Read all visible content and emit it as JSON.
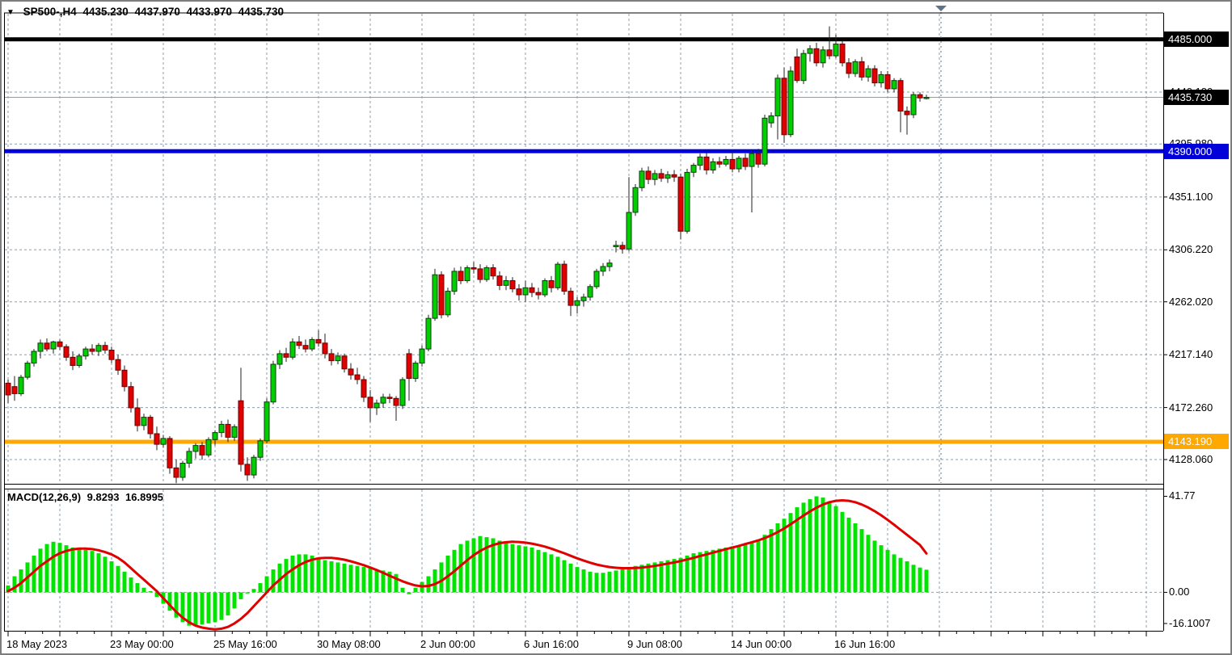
{
  "window": {
    "symbol_label": "SP500-,H4",
    "ohlc_display": {
      "open": "4435.230",
      "high": "4437.970",
      "low": "4433.970",
      "close": "4435.730"
    }
  },
  "indicator_label": {
    "name": "MACD(12,26,9)",
    "macd": "9.8293",
    "signal": "16.8995"
  },
  "colors": {
    "bull": "#00CE00",
    "bull_border": "#0B3D0B",
    "bear": "#E00000",
    "bear_border": "#6B0000",
    "wick": "#222222",
    "grid": "#8E9EAE",
    "hist": "#00E400",
    "signal": "#E00000",
    "price_line": "#9B9B9B",
    "border": "#000000",
    "shift_marker": "#5F7386",
    "hline_black": "#000000",
    "hline_blue": "#0000D9",
    "hline_orange": "#FFA800"
  },
  "hlines": [
    {
      "name": "resistance-black",
      "price": 4485.0,
      "label": "4485.000",
      "color_key": "hline_black",
      "badge_bg": "#000000",
      "badge_fg": "#FFFFFF"
    },
    {
      "name": "support-blue",
      "price": 4390.0,
      "label": "4390.000",
      "color_key": "hline_blue",
      "badge_bg": "#0000D9",
      "badge_fg": "#FFFFFF"
    },
    {
      "name": "support-orange",
      "price": 4143.19,
      "label": "4143.190",
      "color_key": "hline_orange",
      "badge_bg": "#FFA800",
      "badge_fg": "#FFFFFF"
    }
  ],
  "current_price": {
    "value": 4435.73,
    "label": "4435.730",
    "badge_bg": "#000000",
    "badge_fg": "#FFFFFF"
  },
  "price_axis_ticks": [
    {
      "label": "4440.180",
      "price": 4440.18
    },
    {
      "label": "4395.980",
      "price": 4395.98
    },
    {
      "label": "4351.100",
      "price": 4351.1
    },
    {
      "label": "4306.220",
      "price": 4306.22
    },
    {
      "label": "4262.020",
      "price": 4262.02
    },
    {
      "label": "4217.140",
      "price": 4217.14
    },
    {
      "label": "4172.260",
      "price": 4172.26
    },
    {
      "label": "4128.060",
      "price": 4128.06
    }
  ],
  "macd_axis_ticks": [
    {
      "label": "41.77",
      "value": 41.77
    },
    {
      "label": "0.00",
      "value": 0
    },
    {
      "label": "-16.1007",
      "value": -16.1007
    }
  ],
  "time_axis_labels": [
    {
      "label": "18 May 2023",
      "index": 0
    },
    {
      "label": "23 May 00:00",
      "index": 16
    },
    {
      "label": "25 May 16:00",
      "index": 32
    },
    {
      "label": "30 May 08:00",
      "index": 48
    },
    {
      "label": "2 Jun 00:00",
      "index": 64
    },
    {
      "label": "6 Jun 16:00",
      "index": 80
    },
    {
      "label": "9 Jun 08:00",
      "index": 96
    },
    {
      "label": "14 Jun 00:00",
      "index": 112
    },
    {
      "label": "16 Jun 16:00",
      "index": 128
    }
  ],
  "chart_data": [
    {
      "type": "candlestick",
      "title": "SP500- H4",
      "ylim": [
        4107.5,
        4507.4
      ],
      "xlabels": [
        "18 May 2023",
        "23 May 00:00",
        "25 May 16:00",
        "30 May 08:00",
        "2 Jun 00:00",
        "6 Jun 16:00",
        "9 Jun 08:00",
        "14 Jun 00:00",
        "16 Jun 16:00"
      ],
      "open": [
        4193,
        4190,
        4184,
        4198,
        4210,
        4220,
        4227,
        4222,
        4228,
        4224,
        4215,
        4208,
        4216,
        4222,
        4220,
        4225,
        4221,
        4213,
        4204,
        4190,
        4172,
        4157,
        4164,
        4150,
        4141,
        4146,
        4121,
        4113,
        4125,
        4135,
        4140,
        4132,
        4145,
        4151,
        4158,
        4147,
        4178,
        4124,
        4115,
        4130,
        4144,
        4177,
        4209,
        4218,
        4215,
        4228,
        4225,
        4222,
        4230,
        4227,
        4218,
        4212,
        4216,
        4205,
        4200,
        4196,
        4181,
        4172,
        4176,
        4181,
        4180,
        4174,
        4218,
        4197,
        4210,
        4222,
        4248,
        4285,
        4251,
        4271,
        4288,
        4280,
        4291,
        4290,
        4281,
        4291,
        4284,
        4276,
        4280,
        4273,
        4268,
        4274,
        4270,
        4268,
        4280,
        4274,
        4294,
        4271,
        4259,
        4263,
        4266,
        4275,
        4288,
        4292,
        4309,
        4310,
        4307,
        4338,
        4359,
        4373,
        4366,
        4371,
        4367,
        4370,
        4368,
        4322,
        4372,
        4378,
        4385,
        4374,
        4381,
        4379,
        4383,
        4375,
        4384,
        4377,
        4388,
        4379,
        4414,
        4420,
        4452,
        4404,
        4470,
        4450,
        4473,
        4477,
        4465,
        4476,
        4471,
        4481,
        4465,
        4456,
        4466,
        4453,
        4460,
        4448,
        4455,
        4443,
        4450,
        4424,
        4421,
        4438,
        4435.23
      ],
      "high": [
        4196,
        4199,
        4200,
        4212,
        4222,
        4230,
        4231,
        4229,
        4230,
        4226,
        4220,
        4218,
        4224,
        4226,
        4227,
        4228,
        4224,
        4217,
        4208,
        4194,
        4180,
        4167,
        4166,
        4156,
        4149,
        4148,
        4128,
        4127,
        4138,
        4142,
        4143,
        4147,
        4153,
        4161,
        4162,
        4158,
        4206,
        4130,
        4132,
        4146,
        4180,
        4212,
        4221,
        4223,
        4231,
        4233,
        4230,
        4232,
        4238,
        4235,
        4222,
        4219,
        4218,
        4210,
        4206,
        4199,
        4187,
        4179,
        4184,
        4184,
        4182,
        4198,
        4222,
        4212,
        4225,
        4251,
        4290,
        4288,
        4274,
        4291,
        4292,
        4293,
        4296,
        4294,
        4293,
        4294,
        4288,
        4284,
        4283,
        4277,
        4280,
        4278,
        4274,
        4282,
        4284,
        4296,
        4297,
        4274,
        4266,
        4269,
        4277,
        4290,
        4295,
        4298,
        4314,
        4313,
        4368,
        4362,
        4376,
        4377,
        4374,
        4375,
        4373,
        4374,
        4371,
        4375,
        4380,
        4388,
        4389,
        4384,
        4385,
        4386,
        4390,
        4386,
        4388,
        4391,
        4392,
        4421,
        4423,
        4455,
        4461,
        4462,
        4477,
        4476,
        4480,
        4482,
        4479,
        4496,
        4489,
        4484,
        4469,
        4468,
        4470,
        4463,
        4463,
        4458,
        4458,
        4452,
        4452,
        4428,
        4440,
        4440,
        4437.97
      ],
      "low": [
        4176,
        4178,
        4182,
        4196,
        4207,
        4214,
        4220,
        4218,
        4221,
        4212,
        4204,
        4206,
        4213,
        4217,
        4216,
        4218,
        4210,
        4200,
        4186,
        4168,
        4152,
        4153,
        4146,
        4136,
        4138,
        4116,
        4108,
        4110,
        4121,
        4129,
        4128,
        4130,
        4140,
        4147,
        4143,
        4144,
        4118,
        4110,
        4112,
        4127,
        4142,
        4175,
        4205,
        4211,
        4213,
        4222,
        4219,
        4220,
        4224,
        4214,
        4208,
        4209,
        4202,
        4196,
        4192,
        4177,
        4160,
        4166,
        4172,
        4176,
        4161,
        4171,
        4178,
        4194,
        4207,
        4220,
        4246,
        4248,
        4249,
        4268,
        4277,
        4278,
        4286,
        4278,
        4279,
        4281,
        4272,
        4272,
        4270,
        4263,
        4262,
        4266,
        4264,
        4266,
        4270,
        4272,
        4268,
        4250,
        4252,
        4258,
        4263,
        4273,
        4284,
        4288,
        4304,
        4303,
        4305,
        4335,
        4356,
        4362,
        4361,
        4364,
        4363,
        4364,
        4315,
        4320,
        4368,
        4374,
        4370,
        4371,
        4376,
        4377,
        4372,
        4372,
        4374,
        4338,
        4376,
        4377,
        4410,
        4400,
        4397,
        4402,
        4448,
        4447,
        4466,
        4462,
        4461,
        4468,
        4469,
        4462,
        4452,
        4453,
        4450,
        4449,
        4445,
        4444,
        4440,
        4440,
        4406,
        4404,
        4418,
        4432,
        4433.97
      ],
      "close": [
        4183,
        4184,
        4198,
        4210,
        4220,
        4227,
        4222,
        4228,
        4224,
        4215,
        4208,
        4216,
        4222,
        4220,
        4225,
        4221,
        4213,
        4204,
        4190,
        4172,
        4157,
        4164,
        4150,
        4141,
        4146,
        4121,
        4113,
        4125,
        4135,
        4140,
        4132,
        4145,
        4151,
        4158,
        4147,
        4156,
        4124,
        4115,
        4130,
        4144,
        4177,
        4209,
        4218,
        4215,
        4228,
        4225,
        4222,
        4230,
        4227,
        4218,
        4212,
        4216,
        4205,
        4200,
        4196,
        4181,
        4172,
        4176,
        4181,
        4180,
        4174,
        4196,
        4197,
        4210,
        4222,
        4248,
        4285,
        4251,
        4271,
        4288,
        4280,
        4291,
        4290,
        4281,
        4291,
        4284,
        4276,
        4280,
        4273,
        4268,
        4274,
        4270,
        4268,
        4280,
        4274,
        4294,
        4271,
        4259,
        4263,
        4266,
        4275,
        4288,
        4292,
        4295,
        4310,
        4307,
        4338,
        4359,
        4373,
        4366,
        4371,
        4367,
        4370,
        4368,
        4322,
        4372,
        4378,
        4385,
        4374,
        4381,
        4379,
        4383,
        4375,
        4384,
        4377,
        4388,
        4379,
        4418,
        4420,
        4452,
        4404,
        4458,
        4450,
        4473,
        4477,
        4465,
        4476,
        4471,
        4481,
        4465,
        4456,
        4466,
        4453,
        4460,
        4448,
        4455,
        4443,
        4450,
        4424,
        4421,
        4438,
        4435.23,
        4435.73
      ]
    },
    {
      "type": "macd",
      "title": "MACD(12,26,9)",
      "ylim": [
        -16.7,
        45.1
      ],
      "histogram": [
        3,
        7,
        10,
        13,
        16,
        19,
        21,
        22,
        21.5,
        20.5,
        19.5,
        19,
        18.5,
        18,
        17,
        15.5,
        13.5,
        11.5,
        9,
        6.5,
        4,
        2,
        0.5,
        -2,
        -5,
        -8,
        -11,
        -13,
        -14.5,
        -14.5,
        -14,
        -13.5,
        -13,
        -12,
        -10,
        -7,
        -3,
        -0.5,
        1.5,
        4,
        7,
        10,
        12.5,
        14.5,
        16,
        16.5,
        16.5,
        16,
        15,
        14,
        13.5,
        13,
        12.5,
        12,
        11.5,
        11,
        10.5,
        10,
        9.5,
        9,
        8,
        2,
        -0.8,
        2,
        4.5,
        7,
        10,
        13,
        16,
        18.5,
        21,
        22.5,
        23.5,
        24.5,
        24,
        23.5,
        22.5,
        21.5,
        21,
        20.5,
        20,
        19.5,
        18.5,
        17.5,
        16.5,
        15.5,
        14,
        12.5,
        11,
        10,
        9,
        8.5,
        8.5,
        9,
        9.5,
        10,
        10.5,
        11.5,
        12,
        12.5,
        13,
        13.5,
        14,
        14.5,
        15,
        16,
        17,
        17.5,
        18,
        18.5,
        19,
        19.5,
        20,
        20.5,
        21,
        22,
        23,
        25,
        27.5,
        30,
        32,
        34.5,
        37,
        39,
        40.5,
        41.77,
        41.2,
        39.5,
        37.5,
        35,
        32.5,
        30,
        27.5,
        25,
        22.5,
        20.5,
        18.5,
        16.5,
        15,
        13.5,
        12,
        10.8,
        9.8293
      ],
      "signal": [
        0.5,
        2,
        4,
        6.5,
        9,
        11.5,
        13.5,
        15.5,
        17,
        18,
        18.7,
        19,
        19,
        18.8,
        18.3,
        17.5,
        16.5,
        15,
        13,
        10.5,
        8,
        5.5,
        3,
        0.5,
        -2.5,
        -5.5,
        -8.5,
        -11,
        -13,
        -14.5,
        -15.3,
        -15.8,
        -16.1,
        -15.8,
        -15,
        -13.5,
        -11.5,
        -9,
        -6,
        -3,
        0,
        3,
        5.5,
        8,
        10,
        11.8,
        13.2,
        14.2,
        14.8,
        15,
        15,
        14.7,
        14.2,
        13.5,
        12.7,
        11.8,
        10.8,
        9.7,
        8.5,
        7.2,
        6,
        4.8,
        3.8,
        3,
        2.6,
        2.8,
        3.6,
        5,
        7,
        9.2,
        11.6,
        14,
        16.2,
        18,
        19.5,
        20.6,
        21.4,
        21.8,
        22,
        21.9,
        21.6,
        21.2,
        20.6,
        19.9,
        19,
        18,
        17,
        15.9,
        14.8,
        13.8,
        12.9,
        12.1,
        11.5,
        11,
        10.7,
        10.5,
        10.5,
        10.6,
        10.8,
        11.1,
        11.5,
        12,
        12.5,
        13,
        13.6,
        14.3,
        15,
        15.8,
        16.5,
        17.3,
        18,
        18.8,
        19.5,
        20.2,
        21,
        21.8,
        22.6,
        23.6,
        24.8,
        26.2,
        27.8,
        29.6,
        31.5,
        33.4,
        35.2,
        36.8,
        38.2,
        39.2,
        39.8,
        40,
        39.8,
        39.2,
        38.2,
        36.9,
        35.3,
        33.5,
        31.5,
        29.4,
        27.2,
        25,
        22.8,
        20.6,
        16.9
      ]
    }
  ]
}
